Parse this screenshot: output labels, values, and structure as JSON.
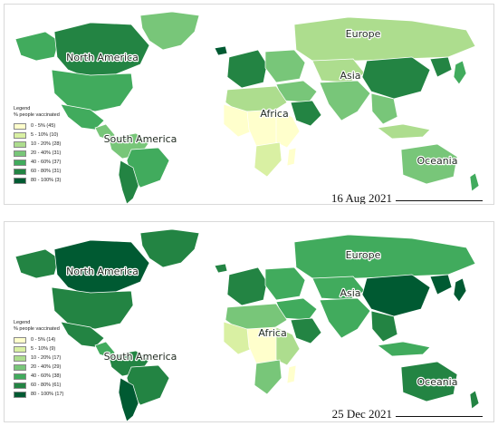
{
  "colors": {
    "ocean": "#ffffff",
    "border": "#ffffff",
    "legend_bins": [
      "#ffffcc",
      "#d9f0a3",
      "#addd8e",
      "#78c679",
      "#41ab5d",
      "#238443",
      "#005a32"
    ]
  },
  "maps": [
    {
      "date": "16 Aug 2021",
      "legend": {
        "title": "Legend",
        "subtitle": "% people vaccinated",
        "items": [
          "0 - 5% (45)",
          "5 - 10% (10)",
          "10 - 20% (28)",
          "20 - 40% (31)",
          "40 - 60% (37)",
          "60 - 80% (31)",
          "80 - 100% (3)"
        ]
      },
      "labels": {
        "north_america": "North America",
        "south_america": "South America",
        "europe": "Europe",
        "asia": "Asia",
        "africa": "Africa",
        "oceania": "Oceania"
      },
      "region_bins": {
        "greenland": 3,
        "canada": 5,
        "alaska": 4,
        "usa": 4,
        "mexico": 4,
        "central_america": 3,
        "south_america_north": 3,
        "brazil": 4,
        "south_america_south": 5,
        "europe_west": 5,
        "europe_east": 3,
        "russia": 2,
        "middle_east": 3,
        "arabia": 5,
        "central_asia": 2,
        "south_asia": 3,
        "china": 5,
        "east_asia": 5,
        "southeast_asia": 3,
        "africa_north": 2,
        "africa_west": 0,
        "africa_central": 0,
        "africa_east": 0,
        "africa_south": 1,
        "australia": 3,
        "new_zealand": 4,
        "iceland": 6,
        "indonesia": 2,
        "japan": 4,
        "madagascar": 0
      }
    },
    {
      "date": "25 Dec 2021",
      "legend": {
        "title": "Legend",
        "subtitle": "% people vaccinated",
        "items": [
          "0 - 5% (14)",
          "5 - 10% (9)",
          "10 - 20% (17)",
          "20 - 40% (29)",
          "40 - 60% (38)",
          "60 - 80% (61)",
          "80 - 100% (17)"
        ]
      },
      "labels": {
        "north_america": "North America",
        "south_america": "South America",
        "europe": "Europe",
        "asia": "Asia",
        "africa": "Africa",
        "oceania": "Oceania"
      },
      "region_bins": {
        "greenland": 5,
        "canada": 6,
        "alaska": 5,
        "usa": 5,
        "mexico": 5,
        "central_america": 4,
        "south_america_north": 5,
        "brazil": 5,
        "south_america_south": 6,
        "europe_west": 5,
        "europe_east": 4,
        "russia": 4,
        "middle_east": 4,
        "arabia": 5,
        "central_asia": 4,
        "south_asia": 4,
        "china": 6,
        "east_asia": 6,
        "southeast_asia": 5,
        "africa_north": 3,
        "africa_west": 1,
        "africa_central": 0,
        "africa_east": 2,
        "africa_south": 3,
        "australia": 5,
        "new_zealand": 5,
        "iceland": 5,
        "indonesia": 4,
        "japan": 6,
        "madagascar": 0
      }
    }
  ]
}
